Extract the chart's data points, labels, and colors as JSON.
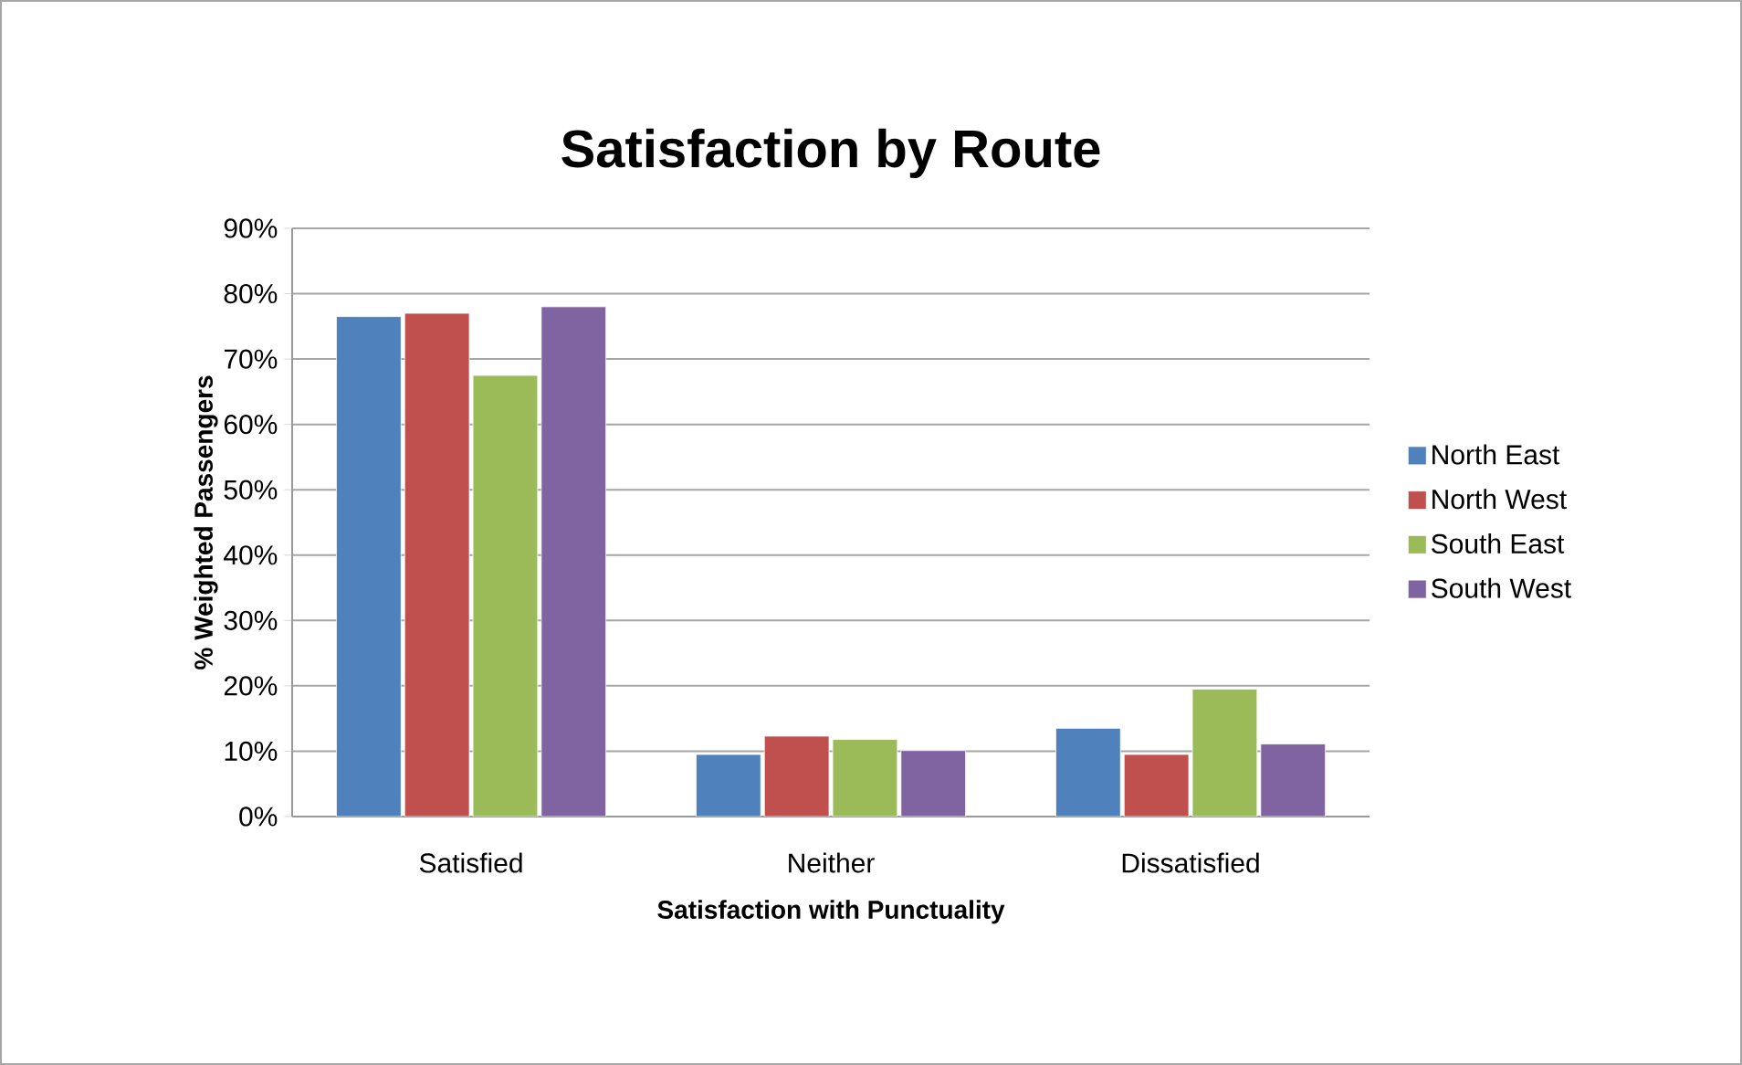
{
  "chart_data": {
    "type": "bar",
    "title": "Satisfaction by Route",
    "xlabel": "Satisfaction with Punctuality",
    "ylabel": "% Weighted Passengers",
    "categories": [
      "Satisfied",
      "Neither",
      "Dissatisfied"
    ],
    "series": [
      {
        "name": "North East",
        "color": "#4f81bd",
        "values": [
          76.5,
          9.5,
          13.5
        ]
      },
      {
        "name": "North West",
        "color": "#c0504d",
        "values": [
          77,
          12.3,
          9.5
        ]
      },
      {
        "name": "South East",
        "color": "#9bbb59",
        "values": [
          67.5,
          11.8,
          19.5
        ]
      },
      {
        "name": "South West",
        "color": "#8064a2",
        "values": [
          78,
          10.1,
          11.1
        ]
      }
    ],
    "ylim": [
      0,
      90
    ],
    "yticks": [
      {
        "value": 0,
        "label": "0%"
      },
      {
        "value": 10,
        "label": "10%"
      },
      {
        "value": 20,
        "label": "20%"
      },
      {
        "value": 30,
        "label": "30%"
      },
      {
        "value": 40,
        "label": "40%"
      },
      {
        "value": 50,
        "label": "50%"
      },
      {
        "value": 60,
        "label": "60%"
      },
      {
        "value": 70,
        "label": "70%"
      },
      {
        "value": 80,
        "label": "80%"
      },
      {
        "value": 90,
        "label": "90%"
      }
    ],
    "grid": "y",
    "legend": "right"
  }
}
